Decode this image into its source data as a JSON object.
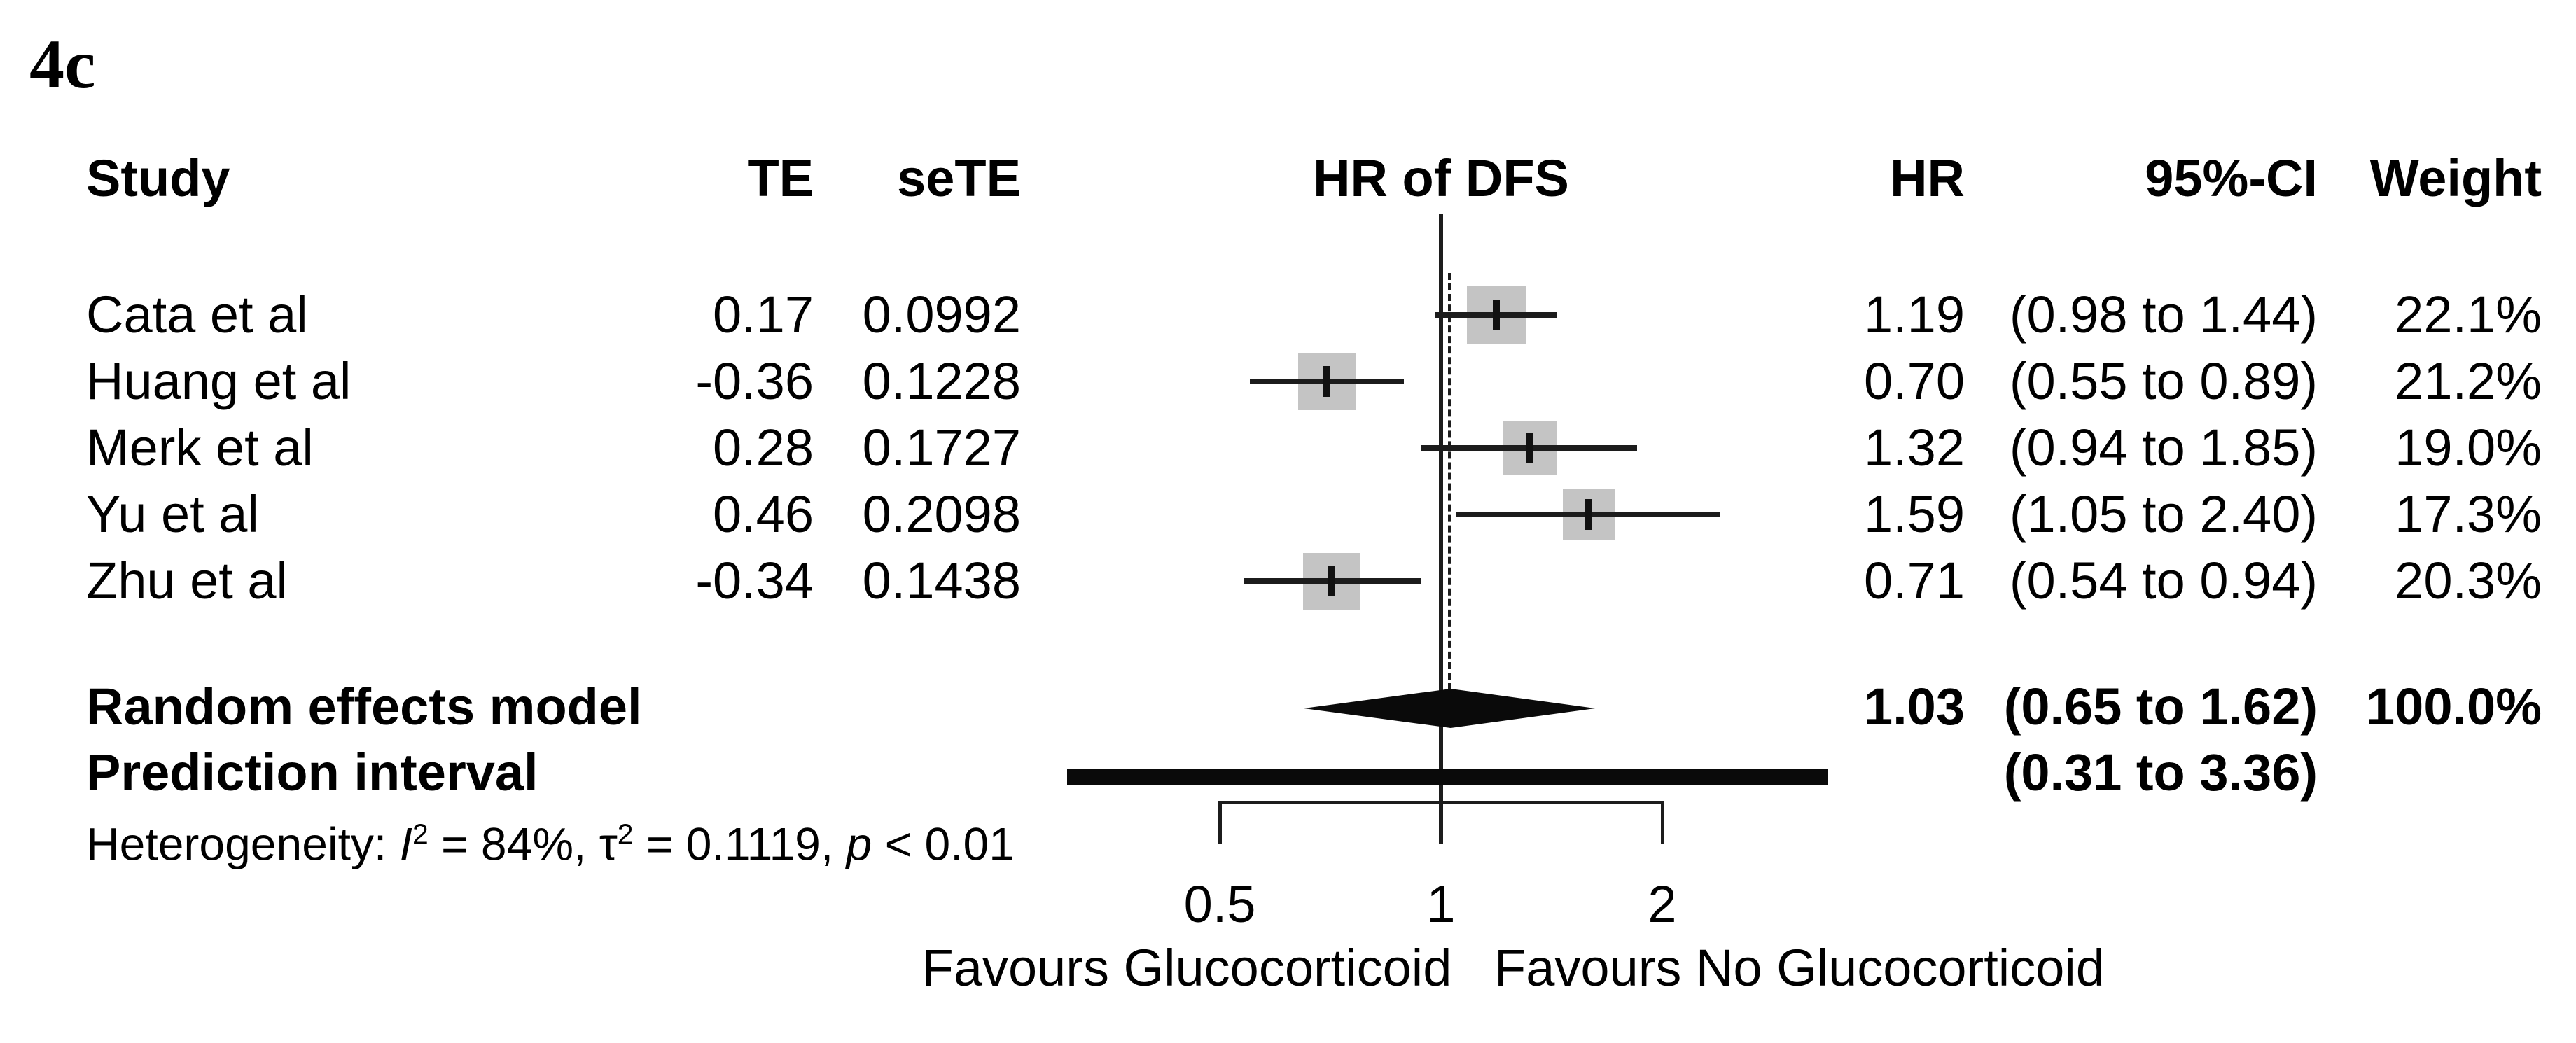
{
  "figure_label": "4c",
  "header": {
    "study": "Study",
    "te": "TE",
    "sete": "seTE",
    "plot_title": "HR of DFS",
    "hr": "HR",
    "ci": "95%-CI",
    "weight": "Weight"
  },
  "studies": [
    {
      "name": "Cata et al",
      "te": "0.17",
      "sete": "0.0992",
      "hr_text": "1.19",
      "ci_text": "(0.98 to 1.44)",
      "weight_text": "22.1%",
      "hr": 1.19,
      "ci_low": 0.98,
      "ci_high": 1.44,
      "weight_pct": 22.1
    },
    {
      "name": "Huang et al",
      "te": "-0.36",
      "sete": "0.1228",
      "hr_text": "0.70",
      "ci_text": "(0.55 to 0.89)",
      "weight_text": "21.2%",
      "hr": 0.7,
      "ci_low": 0.55,
      "ci_high": 0.89,
      "weight_pct": 21.2
    },
    {
      "name": "Merk et al",
      "te": "0.28",
      "sete": "0.1727",
      "hr_text": "1.32",
      "ci_text": "(0.94 to 1.85)",
      "weight_text": "19.0%",
      "hr": 1.32,
      "ci_low": 0.94,
      "ci_high": 1.85,
      "weight_pct": 19.0
    },
    {
      "name": "Yu et al",
      "te": "0.46",
      "sete": "0.2098",
      "hr_text": "1.59",
      "ci_text": "(1.05 to 2.40)",
      "weight_text": "17.3%",
      "hr": 1.59,
      "ci_low": 1.05,
      "ci_high": 2.4,
      "weight_pct": 17.3
    },
    {
      "name": "Zhu et al",
      "te": "-0.34",
      "sete": "0.1438",
      "hr_text": "0.71",
      "ci_text": "(0.54 to 0.94)",
      "weight_text": "20.3%",
      "hr": 0.71,
      "ci_low": 0.54,
      "ci_high": 0.94,
      "weight_pct": 20.3
    }
  ],
  "summary": {
    "random_label": "Random effects model",
    "random_hr_text": "1.03",
    "random_ci_text": "(0.65 to 1.62)",
    "random_weight_text": "100.0%",
    "random_hr": 1.03,
    "random_ci_low": 0.65,
    "random_ci_high": 1.62,
    "prediction_label": "Prediction interval",
    "prediction_ci_text": "(0.31 to 3.36)",
    "prediction_low": 0.31,
    "prediction_high": 3.36
  },
  "heterogeneity": {
    "prefix": "Heterogeneity: ",
    "i2_symbol": "I",
    "sup2": "2",
    "i2_rest": " = 84%, ",
    "tau_symbol": "τ",
    "tau_rest": " = 0.1119, ",
    "p_symbol": "p",
    "p_rest": " < 0.01"
  },
  "axis": {
    "ticks": [
      0.5,
      1,
      2
    ],
    "tick_labels": [
      "0.5",
      "1",
      "2"
    ],
    "favours_left": "Favours Glucocorticoid",
    "favours_right": "Favours No Glucocorticoid"
  },
  "chart_data": {
    "type": "scatter",
    "subtype": "forest-plot",
    "title": "HR of DFS",
    "x_scale": "log2",
    "x_ticks": [
      0.5,
      1,
      2
    ],
    "xlim_drawn": [
      0.31,
      3.36
    ],
    "reference_line_x": 1,
    "pooled_dotted_line_x": 1.03,
    "grid": false,
    "legend": "none",
    "series": [
      {
        "name": "Cata et al",
        "TE": 0.17,
        "seTE": 0.0992,
        "HR": 1.19,
        "ci95": [
          0.98,
          1.44
        ],
        "weight_pct": 22.1
      },
      {
        "name": "Huang et al",
        "TE": -0.36,
        "seTE": 0.1228,
        "HR": 0.7,
        "ci95": [
          0.55,
          0.89
        ],
        "weight_pct": 21.2
      },
      {
        "name": "Merk et al",
        "TE": 0.28,
        "seTE": 0.1727,
        "HR": 1.32,
        "ci95": [
          0.94,
          1.85
        ],
        "weight_pct": 19.0
      },
      {
        "name": "Yu et al",
        "TE": 0.46,
        "seTE": 0.2098,
        "HR": 1.59,
        "ci95": [
          1.05,
          2.4
        ],
        "weight_pct": 17.3
      },
      {
        "name": "Zhu et al",
        "TE": -0.34,
        "seTE": 0.1438,
        "HR": 0.71,
        "ci95": [
          0.54,
          0.94
        ],
        "weight_pct": 20.3
      }
    ],
    "random_effects": {
      "HR": 1.03,
      "ci95": [
        0.65,
        1.62
      ],
      "weight_pct": 100.0
    },
    "prediction_interval": [
      0.31,
      3.36
    ],
    "heterogeneity": {
      "I2_pct": 84,
      "tau2": 0.1119,
      "p": "< 0.01"
    },
    "x_axis_caption_left": "Favours Glucocorticoid",
    "x_axis_caption_right": "Favours No Glucocorticoid"
  },
  "colors": {
    "background": "#ffffff",
    "text": "#000000",
    "square_fill": "#c4c4c4",
    "line": "#1c1c1c",
    "diamond_fill": "#0a0a0a"
  }
}
